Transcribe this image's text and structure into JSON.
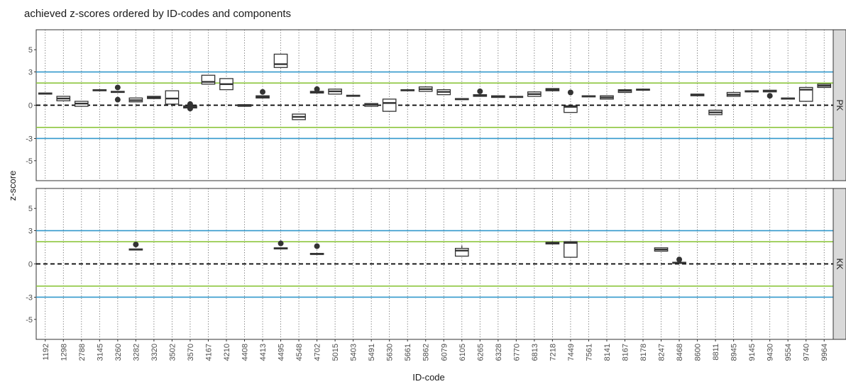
{
  "chart_data": {
    "type": "box",
    "title": "achieved z-scores ordered by ID-codes and components",
    "xlabel": "ID-code",
    "ylabel": "z-score",
    "ylim": [
      -6.8,
      6.8
    ],
    "y_ticks": [
      -5,
      -3,
      0,
      3,
      5
    ],
    "categories": [
      "1192",
      "1298",
      "2788",
      "3145",
      "3260",
      "3282",
      "3320",
      "3502",
      "3570",
      "4167",
      "4210",
      "4408",
      "4413",
      "4495",
      "4548",
      "4702",
      "5015",
      "5403",
      "5491",
      "5630",
      "5661",
      "5862",
      "6079",
      "6105",
      "6265",
      "6328",
      "6770",
      "6813",
      "7218",
      "7449",
      "7561",
      "8141",
      "8167",
      "8178",
      "8247",
      "8468",
      "8600",
      "8811",
      "8945",
      "9145",
      "9430",
      "9554",
      "9740",
      "9964"
    ],
    "reference_lines": [
      {
        "value": 0,
        "color": "#000000",
        "style": "dashed"
      },
      {
        "value": 2,
        "color": "#8dc63f",
        "style": "solid"
      },
      {
        "value": -2,
        "color": "#8dc63f",
        "style": "solid"
      },
      {
        "value": 3,
        "color": "#3399cc",
        "style": "solid"
      },
      {
        "value": -3,
        "color": "#3399cc",
        "style": "solid"
      }
    ],
    "panels": [
      {
        "name": "PK",
        "boxes": [
          {
            "id": "1192",
            "q1": 1.0,
            "median": 1.05,
            "q3": 1.1
          },
          {
            "id": "1298",
            "q1": 0.4,
            "median": 0.6,
            "q3": 0.8
          },
          {
            "id": "2788",
            "q1": -0.1,
            "median": 0.15,
            "q3": 0.35
          },
          {
            "id": "3145",
            "q1": 1.3,
            "median": 1.35,
            "q3": 1.4
          },
          {
            "id": "3260",
            "q1": 1.15,
            "median": 1.2,
            "q3": 1.25,
            "outliers": [
              1.6,
              0.5
            ]
          },
          {
            "id": "3282",
            "q1": 0.3,
            "median": 0.45,
            "q3": 0.65
          },
          {
            "id": "3320",
            "q1": 0.6,
            "median": 0.7,
            "q3": 0.8
          },
          {
            "id": "3502",
            "q1": 0.1,
            "median": 0.6,
            "q3": 1.3
          },
          {
            "id": "3570",
            "q1": -0.25,
            "median": -0.15,
            "q3": -0.05,
            "outliers": [
              0.1,
              -0.3
            ]
          },
          {
            "id": "4167",
            "q1": 1.9,
            "median": 2.1,
            "q3": 2.7
          },
          {
            "id": "4210",
            "q1": 1.4,
            "median": 1.9,
            "q3": 2.4
          },
          {
            "id": "4408",
            "q1": -0.1,
            "median": 0.0,
            "q3": 0.05
          },
          {
            "id": "4413",
            "q1": 0.65,
            "median": 0.75,
            "q3": 0.85,
            "outliers": [
              1.2
            ]
          },
          {
            "id": "4495",
            "q1": 3.4,
            "median": 3.7,
            "q3": 4.6
          },
          {
            "id": "4548",
            "q1": -1.3,
            "median": -1.05,
            "q3": -0.8
          },
          {
            "id": "4702",
            "q1": 1.1,
            "median": 1.15,
            "q3": 1.25,
            "outliers": [
              1.45
            ]
          },
          {
            "id": "5015",
            "q1": 1.0,
            "median": 1.25,
            "q3": 1.45
          },
          {
            "id": "5403",
            "q1": 0.8,
            "median": 0.85,
            "q3": 0.9
          },
          {
            "id": "5491",
            "q1": -0.1,
            "median": 0.05,
            "q3": 0.15
          },
          {
            "id": "5630",
            "q1": -0.55,
            "median": 0.2,
            "q3": 0.55
          },
          {
            "id": "5661",
            "q1": 1.3,
            "median": 1.35,
            "q3": 1.4
          },
          {
            "id": "5862",
            "q1": 1.25,
            "median": 1.45,
            "q3": 1.65
          },
          {
            "id": "6079",
            "q1": 0.95,
            "median": 1.2,
            "q3": 1.4
          },
          {
            "id": "6105",
            "q1": 0.5,
            "median": 0.55,
            "q3": 0.6
          },
          {
            "id": "6265",
            "q1": 0.8,
            "median": 0.85,
            "q3": 0.95,
            "outliers": [
              1.25
            ]
          },
          {
            "id": "6328",
            "q1": 0.7,
            "median": 0.75,
            "q3": 0.85
          },
          {
            "id": "6770",
            "q1": 0.7,
            "median": 0.75,
            "q3": 0.8
          },
          {
            "id": "6813",
            "q1": 0.8,
            "median": 1.0,
            "q3": 1.2
          },
          {
            "id": "7218",
            "q1": 1.3,
            "median": 1.4,
            "q3": 1.5
          },
          {
            "id": "7449",
            "q1": -0.65,
            "median": -0.15,
            "q3": -0.05,
            "outliers": [
              1.15
            ]
          },
          {
            "id": "7561",
            "q1": 0.75,
            "median": 0.8,
            "q3": 0.85
          },
          {
            "id": "8141",
            "q1": 0.55,
            "median": 0.7,
            "q3": 0.85
          },
          {
            "id": "8167",
            "q1": 1.15,
            "median": 1.3,
            "q3": 1.4
          },
          {
            "id": "8178",
            "q1": 1.35,
            "median": 1.4,
            "q3": 1.45
          },
          {
            "id": "8600",
            "q1": 0.85,
            "median": 0.95,
            "q3": 1.0
          },
          {
            "id": "8811",
            "q1": -0.85,
            "median": -0.65,
            "q3": -0.45
          },
          {
            "id": "8945",
            "q1": 0.8,
            "median": 0.95,
            "q3": 1.15
          },
          {
            "id": "9145",
            "q1": 1.2,
            "median": 1.25,
            "q3": 1.3
          },
          {
            "id": "9430",
            "q1": 1.2,
            "median": 1.3,
            "q3": 1.35,
            "outliers": [
              0.85
            ]
          },
          {
            "id": "9554",
            "q1": 0.55,
            "median": 0.6,
            "q3": 0.65
          },
          {
            "id": "9740",
            "q1": 0.35,
            "median": 1.4,
            "q3": 1.6
          },
          {
            "id": "9964",
            "q1": 1.6,
            "median": 1.75,
            "q3": 1.9
          }
        ]
      },
      {
        "name": "KK",
        "boxes": [
          {
            "id": "3282",
            "q1": 1.25,
            "median": 1.3,
            "q3": 1.35,
            "outliers": [
              1.75
            ]
          },
          {
            "id": "4495",
            "q1": 1.35,
            "median": 1.4,
            "q3": 1.45,
            "outliers": [
              1.85
            ]
          },
          {
            "id": "4702",
            "q1": 0.85,
            "median": 0.9,
            "q3": 0.95,
            "outliers": [
              1.6
            ]
          },
          {
            "id": "6105",
            "q1": 0.7,
            "median": 1.2,
            "q3": 1.4,
            "whisker_high": 1.65
          },
          {
            "id": "7218",
            "q1": 1.8,
            "median": 1.85,
            "q3": 1.95,
            "whisker_high": 2.05
          },
          {
            "id": "7449",
            "q1": 0.6,
            "median": 1.9,
            "q3": 2.0,
            "whisker_high": 2.05
          },
          {
            "id": "8247",
            "q1": 1.15,
            "median": 1.3,
            "q3": 1.45
          },
          {
            "id": "8468",
            "q1": 0.05,
            "median": 0.1,
            "q3": 0.15,
            "outliers": [
              0.4
            ]
          }
        ]
      }
    ],
    "grid": true,
    "legend": "none"
  }
}
